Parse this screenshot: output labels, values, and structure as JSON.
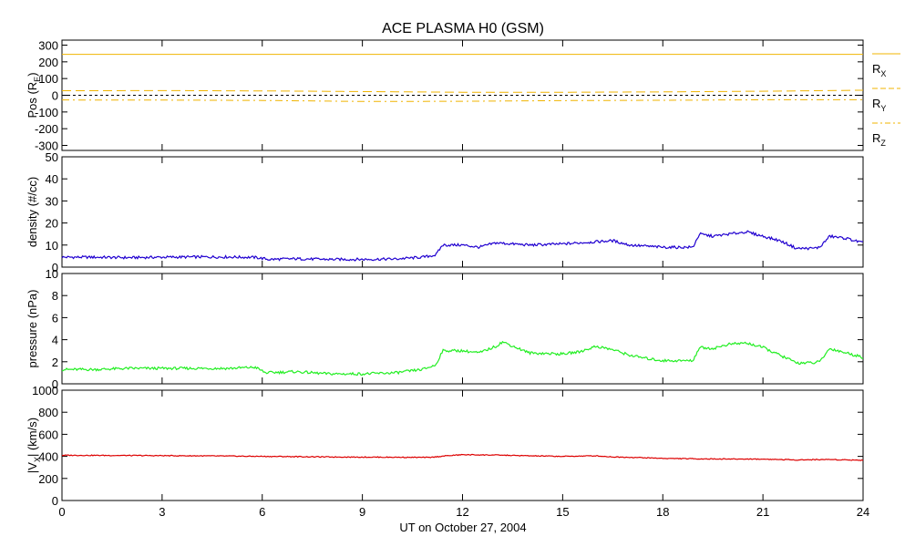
{
  "chart_data": {
    "title": "ACE PLASMA H0 (GSM)",
    "xlabel": "UT on October 27, 2004",
    "x_range": [
      0,
      24
    ],
    "x_ticks": [
      0,
      3,
      6,
      9,
      12,
      15,
      18,
      21,
      24
    ],
    "x_tick_labels": [
      "0",
      "3",
      "6",
      "9",
      "12",
      "15",
      "18",
      "21",
      "24"
    ],
    "panels": [
      {
        "type": "line",
        "ylabel_main": "Pos (R",
        "ylabel_sub": "E",
        "ylabel_end": ")",
        "ylim": [
          -330,
          330
        ],
        "y_ticks": [
          300,
          200,
          100,
          0,
          -100,
          -200,
          -300
        ],
        "y_tick_labels": [
          "300",
          "200",
          "100",
          "0",
          "-100",
          "-200",
          "-300"
        ],
        "zero_line": true,
        "series": [
          {
            "legend_main": "R",
            "legend_sub": "X",
            "color": "#f0b400",
            "dash": "solid",
            "x": [
              0,
              4,
              8,
              12,
              16,
              20,
              24
            ],
            "y": [
              245,
              245,
              245,
              245,
              245,
              245,
              245
            ]
          },
          {
            "legend_main": "R",
            "legend_sub": "Y",
            "color": "#f0b400",
            "dash": "dashed",
            "x": [
              0,
              3,
              6,
              9,
              12,
              15,
              18,
              21,
              24
            ],
            "y": [
              27,
              28,
              26,
              22,
              18,
              18,
              20,
              24,
              30
            ]
          },
          {
            "legend_main": "R",
            "legend_sub": "Z",
            "color": "#f0b400",
            "dash": "dashdot",
            "x": [
              0,
              3,
              6,
              9,
              12,
              15,
              18,
              21,
              24
            ],
            "y": [
              -28,
              -29,
              -31,
              -37,
              -36,
              -32,
              -30,
              -27,
              -27
            ]
          }
        ]
      },
      {
        "type": "line",
        "ylabel_main": "density (#/cc)",
        "ylim": [
          0,
          50
        ],
        "y_ticks": [
          50,
          40,
          30,
          20,
          10,
          0
        ],
        "y_tick_labels": [
          "50",
          "40",
          "30",
          "20",
          "10",
          "0"
        ],
        "series": [
          {
            "color": "#2000d0",
            "x": [
              0,
              1,
              2,
              3,
              4,
              5,
              5.8,
              6.2,
              7,
              8,
              9,
              10,
              10.8,
              11.2,
              11.4,
              12,
              12.5,
              13,
              14,
              15,
              15.5,
              16,
              16.5,
              17,
              18,
              18.9,
              19.1,
              19.5,
              20,
              20.5,
              21,
              21.5,
              21.8,
              22,
              22.5,
              22.7,
              23,
              23.5,
              24
            ],
            "y": [
              4.5,
              4.5,
              4.3,
              4.5,
              4.6,
              4.6,
              4.4,
              3.5,
              3.8,
              3.5,
              3.5,
              3.7,
              4.5,
              5.5,
              10,
              10,
              9,
              11,
              10,
              10.5,
              11,
              11.5,
              12,
              10,
              9,
              9,
              15,
              14,
              15,
              16,
              14,
              12,
              10,
              8.5,
              8.5,
              9,
              14,
              13,
              11
            ]
          }
        ]
      },
      {
        "type": "line",
        "ylabel_main": "pressure (nPa)",
        "ylim": [
          0,
          10
        ],
        "y_ticks": [
          10,
          8,
          6,
          4,
          2,
          0
        ],
        "y_tick_labels": [
          "10",
          "8",
          "6",
          "4",
          "2",
          "0"
        ],
        "series": [
          {
            "color": "#22ee22",
            "x": [
              0,
              1,
              2,
              3,
              4,
              5,
              5.8,
              6.1,
              7,
              8,
              9,
              10,
              10.8,
              11.2,
              11.4,
              12,
              12.5,
              13,
              13.2,
              14,
              15,
              15.5,
              16,
              16.5,
              17,
              17.5,
              18,
              18.9,
              19.1,
              19.5,
              20,
              20.5,
              21,
              21.5,
              21.8,
              22,
              22.5,
              22.7,
              23,
              23.5,
              24
            ],
            "y": [
              1.3,
              1.3,
              1.4,
              1.4,
              1.4,
              1.4,
              1.5,
              1.0,
              1.1,
              0.9,
              0.9,
              1.0,
              1.3,
              1.7,
              3.0,
              3.0,
              2.8,
              3.4,
              3.8,
              2.8,
              2.7,
              2.9,
              3.4,
              3.1,
              2.6,
              2.3,
              2.1,
              2.1,
              3.3,
              3.2,
              3.6,
              3.7,
              3.3,
              2.6,
              2.2,
              1.9,
              1.9,
              2.0,
              3.2,
              2.8,
              2.4
            ]
          }
        ]
      },
      {
        "type": "line",
        "ylabel_main": "|V",
        "ylabel_sub": "X",
        "ylabel_end": "| (km/s)",
        "ylim": [
          0,
          1000
        ],
        "y_ticks": [
          1000,
          800,
          600,
          400,
          200,
          0
        ],
        "y_tick_labels": [
          "1000",
          "800",
          "600",
          "400",
          "200",
          "0"
        ],
        "series": [
          {
            "color": "#dd0000",
            "x": [
              0,
              2,
              4,
              6,
              8,
              10,
              11,
              11.5,
              12,
              13,
              14,
              15,
              16,
              16.5,
              17,
              18,
              19,
              20,
              21,
              22,
              23,
              24
            ],
            "y": [
              410,
              408,
              405,
              400,
              395,
              392,
              390,
              405,
              415,
              412,
              405,
              400,
              405,
              395,
              392,
              382,
              378,
              376,
              375,
              368,
              372,
              365
            ]
          }
        ]
      }
    ]
  }
}
